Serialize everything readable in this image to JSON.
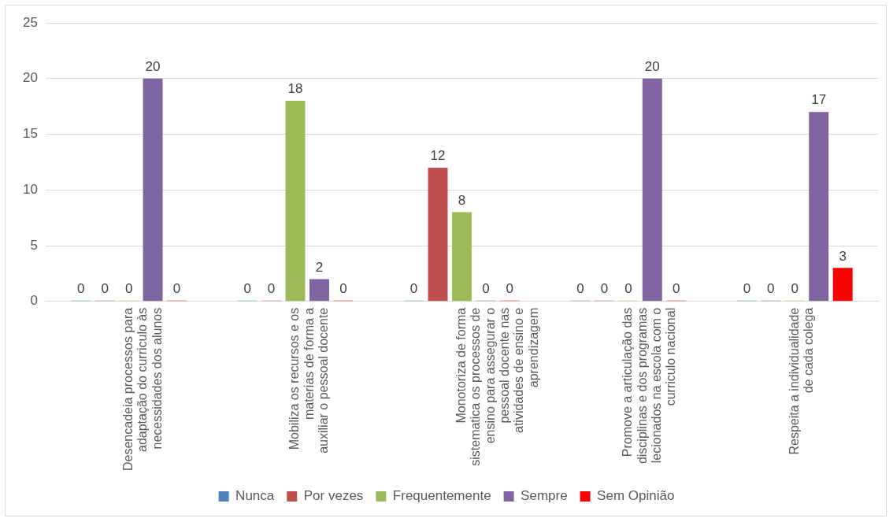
{
  "chart_data": {
    "type": "bar",
    "categories": [
      "Desencadeia processos para adaptação do curriculo às necessidades dos alunos",
      "Mobiliza os recursos e os materias de forma a auxiliar o pessoal docente",
      "Monotoriza de forma sistematica os processos de ensino para assegurar o pessoal docente nas atividades de ensino e aprendizagem",
      "Promove a articulação das disciplinas e dos programas lecionados na escola com o curriculo nacional",
      "Respeita a individualidade de cada colega"
    ],
    "series": [
      {
        "name": "Nunca",
        "color": "#4f81bd",
        "values": [
          0,
          0,
          0,
          0,
          0
        ]
      },
      {
        "name": "Por vezes",
        "color": "#c0504d",
        "values": [
          0,
          0,
          12,
          0,
          0
        ]
      },
      {
        "name": "Frequentemente",
        "color": "#9bbb59",
        "values": [
          0,
          18,
          8,
          0,
          0
        ]
      },
      {
        "name": "Sempre",
        "color": "#8064a2",
        "values": [
          20,
          2,
          0,
          20,
          17
        ]
      },
      {
        "name": "Sem Opinião",
        "color": "#ff0000",
        "values": [
          0,
          0,
          0,
          0,
          3
        ]
      }
    ],
    "ylim": [
      0,
      25
    ],
    "yticks": [
      0,
      5,
      10,
      15,
      20,
      25
    ],
    "grid": "y",
    "legend": "bottom",
    "data_labels": true
  }
}
